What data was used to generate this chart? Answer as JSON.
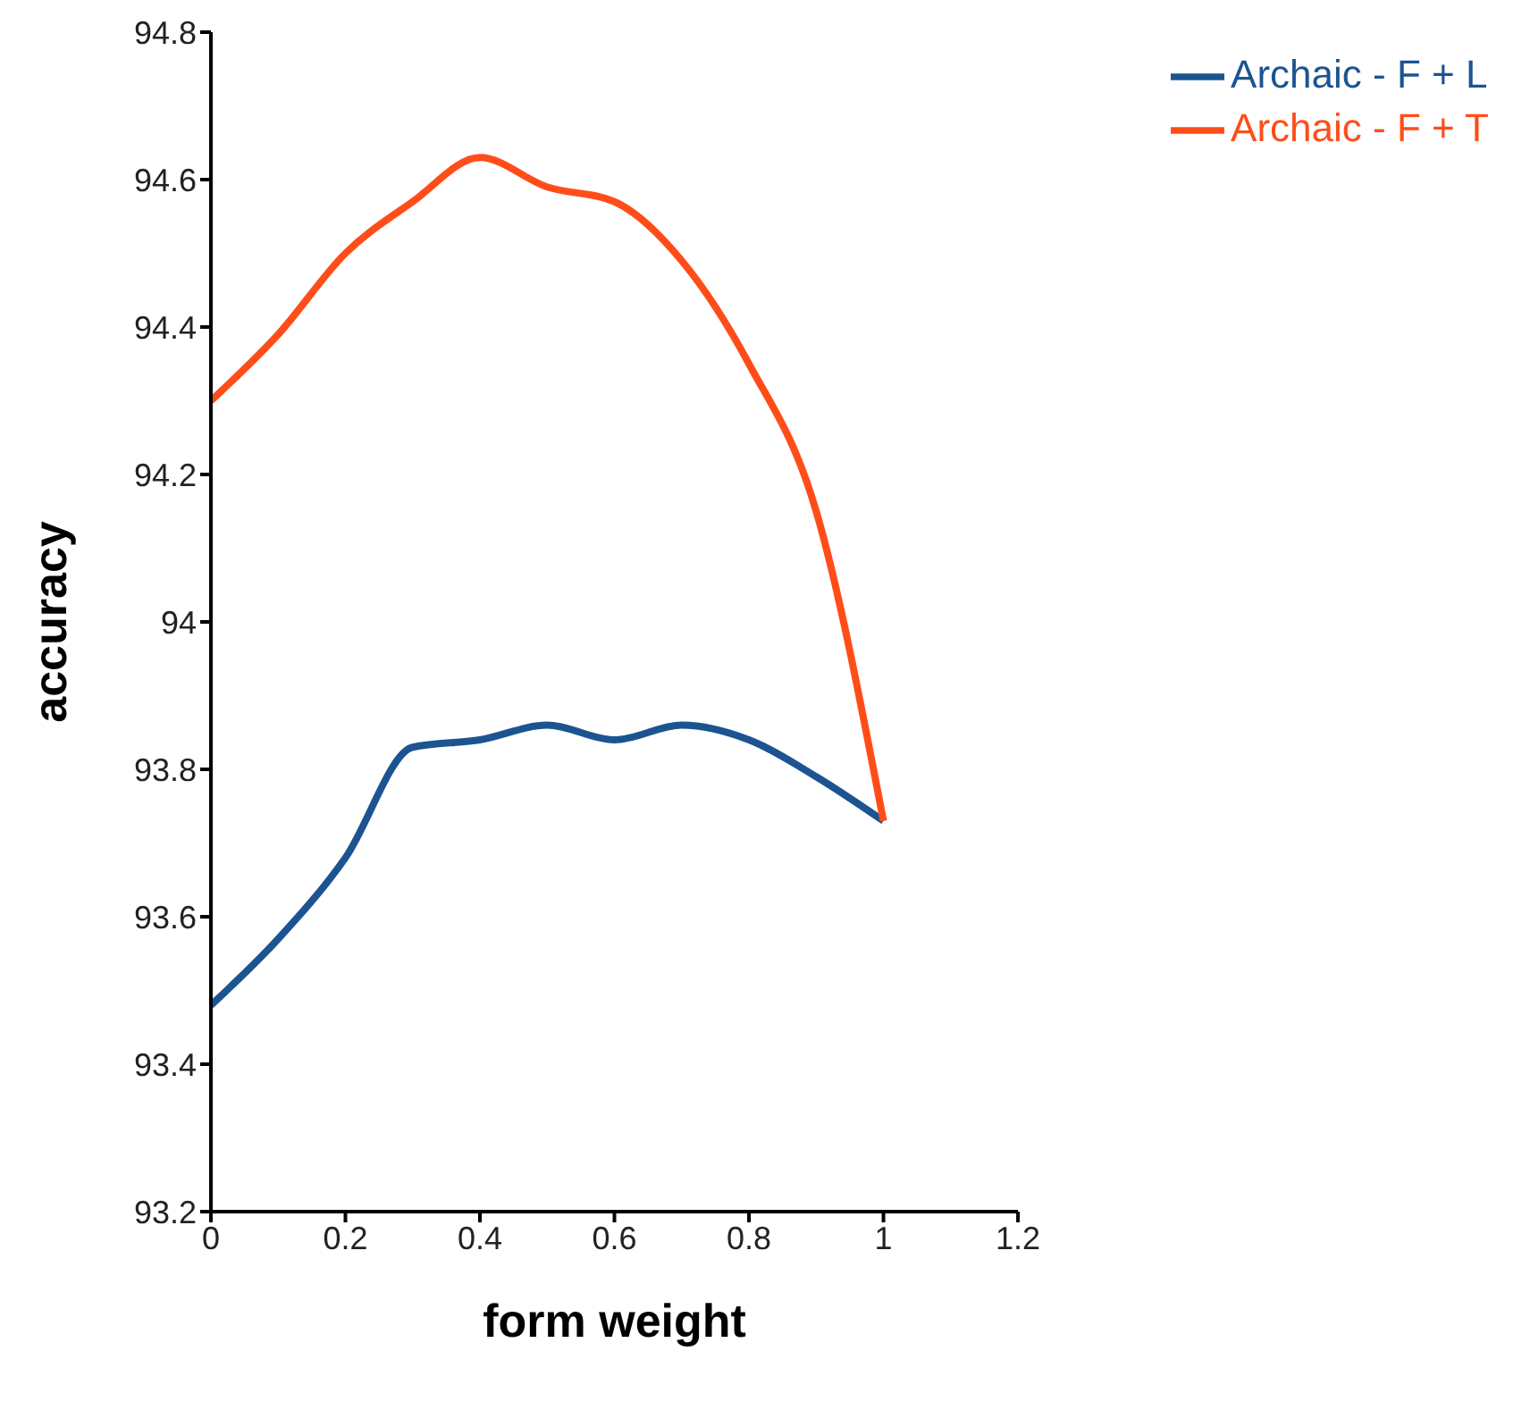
{
  "chart_data": {
    "type": "line",
    "xlabel": "form weight",
    "ylabel": "accuracy",
    "x": [
      0,
      0.1,
      0.2,
      0.3,
      0.4,
      0.5,
      0.6,
      0.7,
      0.8,
      0.9,
      1
    ],
    "series": [
      {
        "name": "Archaic - F + L",
        "color": "#1c5491",
        "values": [
          93.48,
          93.57,
          93.68,
          93.83,
          93.84,
          93.86,
          93.84,
          93.86,
          93.84,
          93.79,
          93.73
        ]
      },
      {
        "name": "Archaic - F + T",
        "color": "#ff4d1a",
        "values": [
          94.3,
          94.39,
          94.5,
          94.57,
          94.63,
          94.59,
          94.57,
          94.49,
          94.35,
          94.15,
          93.73
        ]
      }
    ],
    "xlim": [
      0,
      1.2
    ],
    "xticks": [
      0,
      0.2,
      0.4,
      0.6,
      0.8,
      1,
      1.2
    ],
    "ylim": [
      93.2,
      94.8
    ],
    "yticks": [
      93.2,
      93.4,
      93.6,
      93.8,
      94,
      94.2,
      94.4,
      94.6,
      94.8
    ],
    "grid": false,
    "legend": "top right",
    "marker": "none",
    "line_style": "solid"
  }
}
